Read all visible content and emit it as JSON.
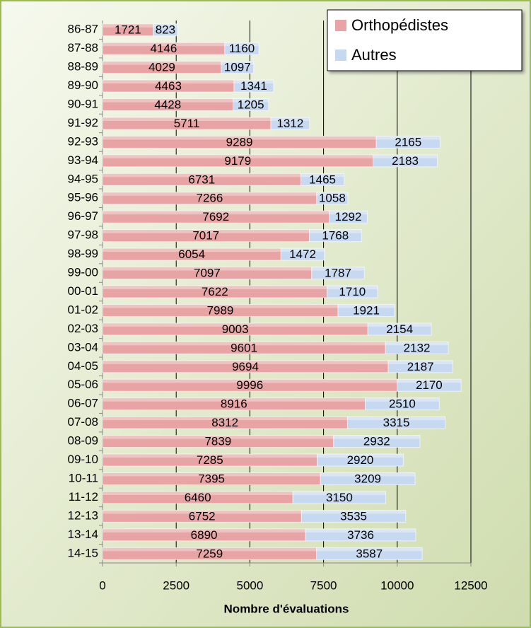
{
  "chart_data": {
    "type": "stacked-bar-horizontal",
    "x_label": "Nombre d'évaluations",
    "categories": [
      "86-87",
      "87-88",
      "88-89",
      "89-90",
      "90-91",
      "91-92",
      "92-93",
      "93-94",
      "94-95",
      "95-96",
      "96-97",
      "97-98",
      "98-99",
      "99-00",
      "00-01",
      "01-02",
      "02-03",
      "03-04",
      "04-05",
      "05-06",
      "06-07",
      "07-08",
      "08-09",
      "09-10",
      "10-11",
      "11-12",
      "12-13",
      "13-14",
      "14-15"
    ],
    "series": [
      {
        "name": "Orthopédistes",
        "color": "#e8a4a4",
        "values": [
          1721,
          4146,
          4029,
          4463,
          4428,
          5711,
          9289,
          9179,
          6731,
          7266,
          7692,
          7017,
          6054,
          7097,
          7622,
          7989,
          9003,
          9601,
          9694,
          9996,
          8916,
          8312,
          7839,
          7285,
          7395,
          6460,
          6752,
          6890,
          7259
        ]
      },
      {
        "name": "Autres",
        "color": "#c6d9f1",
        "values": [
          823,
          1160,
          1097,
          1341,
          1205,
          1312,
          2165,
          2183,
          1465,
          1058,
          1292,
          1768,
          1472,
          1787,
          1710,
          1921,
          2154,
          2132,
          2187,
          2170,
          2510,
          3315,
          2932,
          2920,
          3209,
          3150,
          3535,
          3736,
          3587
        ]
      }
    ],
    "xlim": [
      0,
      12500
    ],
    "xticks": [
      0,
      2500,
      5000,
      7500,
      10000,
      12500
    ],
    "grid": true,
    "legend": "top-right"
  }
}
